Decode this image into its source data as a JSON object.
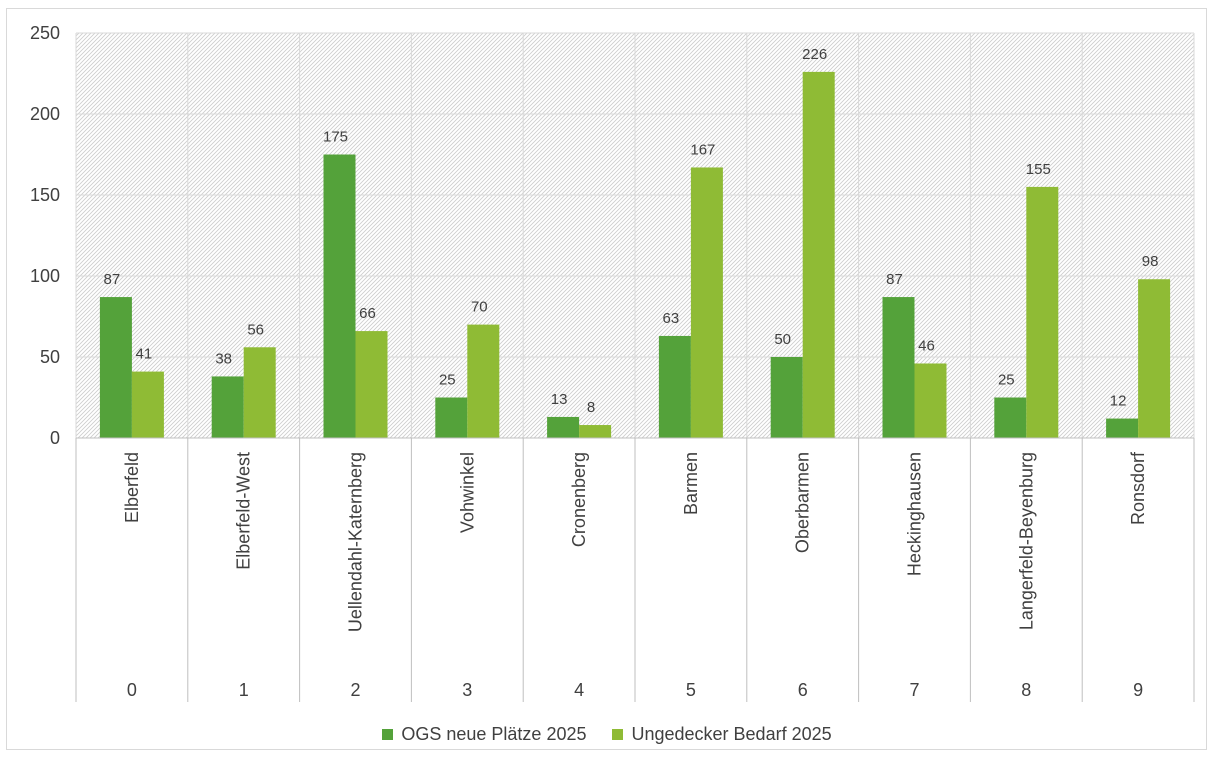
{
  "chart_data": {
    "type": "bar",
    "title": "",
    "categories": [
      "Elberfeld",
      "Elberfeld-West",
      "Uellendahl-Katernberg",
      "Vohwinkel",
      "Cronenberg",
      "Barmen",
      "Oberbarmen",
      "Heckinghausen",
      "Langerfeld-Beyenburg",
      "Ronsdorf"
    ],
    "category_index": [
      "0",
      "1",
      "2",
      "3",
      "4",
      "5",
      "6",
      "7",
      "8",
      "9"
    ],
    "series": [
      {
        "name": "OGS neue Plätze 2025",
        "color": "#54a23a",
        "values": [
          87,
          38,
          175,
          25,
          13,
          63,
          50,
          87,
          25,
          12
        ]
      },
      {
        "name": "Ungedecker Bedarf 2025",
        "color": "#8fbb35",
        "values": [
          41,
          56,
          66,
          70,
          8,
          167,
          226,
          46,
          155,
          98
        ]
      }
    ],
    "ylim": [
      0,
      250
    ],
    "yticks": [
      0,
      50,
      100,
      150,
      200,
      250
    ],
    "grid": true,
    "legend_position": "bottom",
    "data_labels": true
  }
}
